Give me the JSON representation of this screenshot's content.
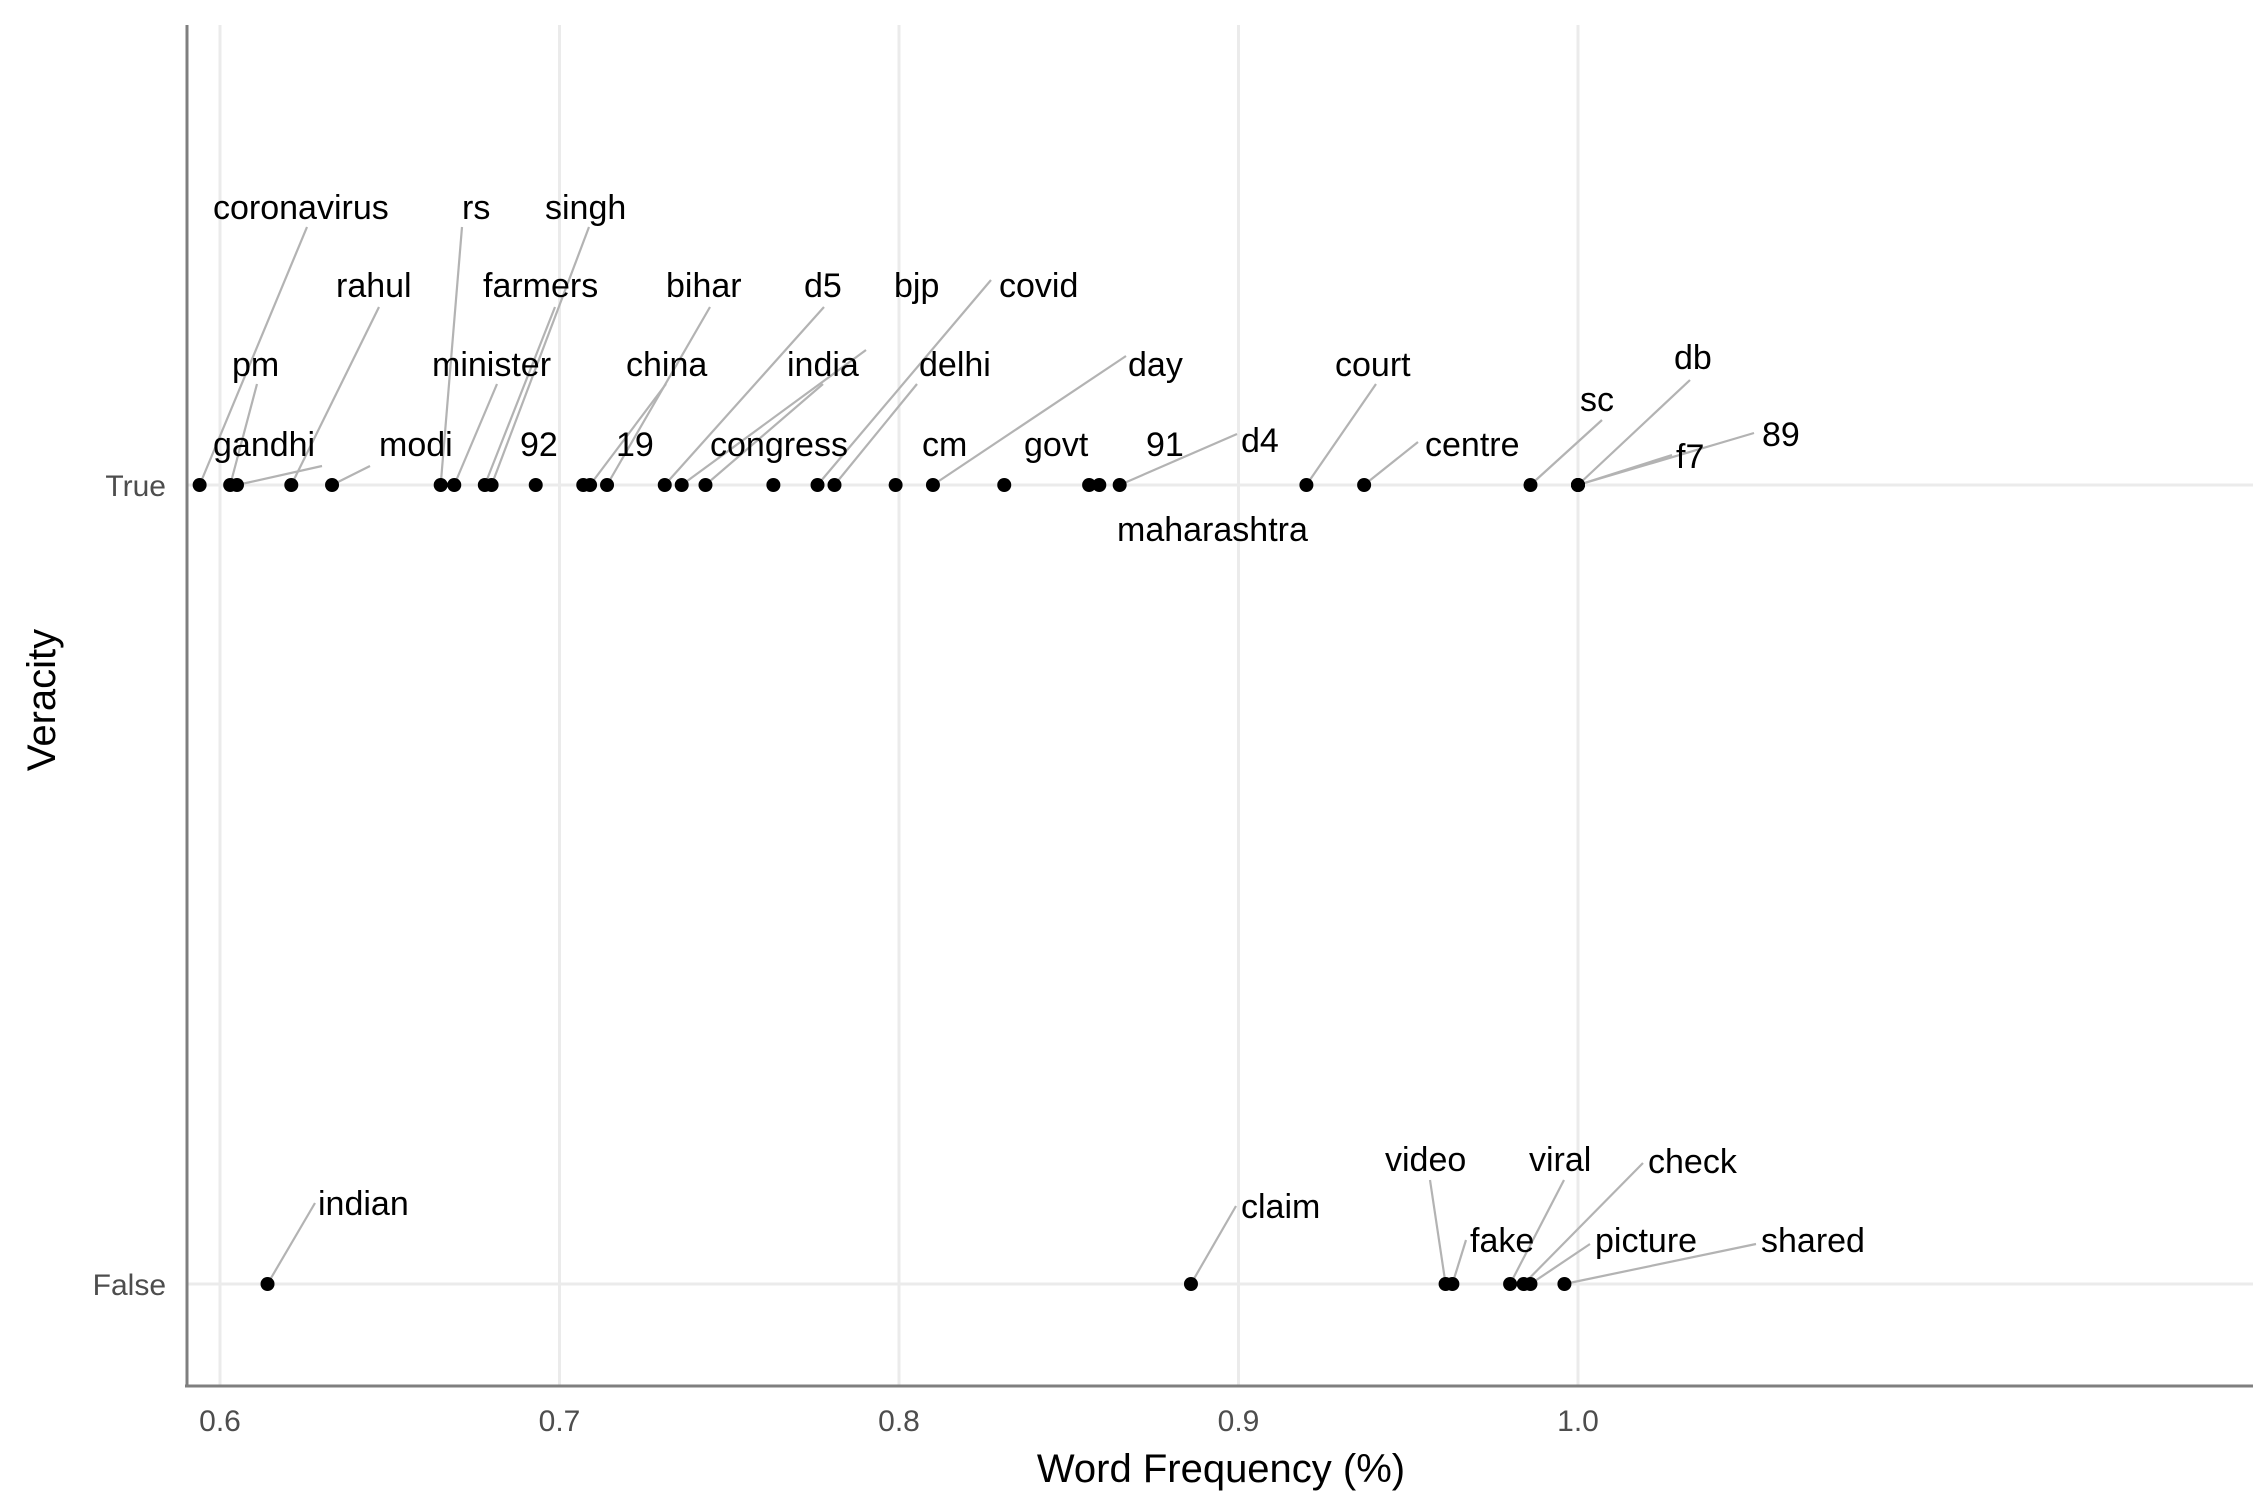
{
  "chart_data": {
    "type": "scatter",
    "title": "",
    "xlabel": "Word Frequency (%)",
    "ylabel": "Veracity",
    "xlim": [
      0.59,
      1.2
    ],
    "x_ticks": [
      "0.6",
      "0.7",
      "0.8",
      "0.9",
      "1.0"
    ],
    "x_tick_values": [
      0.6,
      0.7,
      0.8,
      0.9,
      1.0
    ],
    "categories": [
      "True",
      "False"
    ],
    "grid": "major gridlines on",
    "legend": "none",
    "series": [
      {
        "category": "True",
        "points": [
          {
            "label": "coronavirus",
            "x": 0.594
          },
          {
            "label": "pm",
            "x": 0.603
          },
          {
            "label": "gandhi",
            "x": 0.605
          },
          {
            "label": "rahul",
            "x": 0.621
          },
          {
            "label": "modi",
            "x": 0.633
          },
          {
            "label": "rs",
            "x": 0.665
          },
          {
            "label": "minister",
            "x": 0.669
          },
          {
            "label": "farmers",
            "x": 0.678
          },
          {
            "label": "singh",
            "x": 0.68
          },
          {
            "label": "92",
            "x": 0.693
          },
          {
            "label": "19",
            "x": 0.707
          },
          {
            "label": "china",
            "x": 0.709
          },
          {
            "label": "bihar",
            "x": 0.714
          },
          {
            "label": "d5",
            "x": 0.731
          },
          {
            "label": "bjp",
            "x": 0.736
          },
          {
            "label": "india",
            "x": 0.743
          },
          {
            "label": "congress",
            "x": 0.763
          },
          {
            "label": "covid",
            "x": 0.776
          },
          {
            "label": "delhi",
            "x": 0.781
          },
          {
            "label": "cm",
            "x": 0.799
          },
          {
            "label": "day",
            "x": 0.81
          },
          {
            "label": "govt",
            "x": 0.831
          },
          {
            "label": "maharashtra",
            "x": 0.856
          },
          {
            "label": "91",
            "x": 0.859
          },
          {
            "label": "d4",
            "x": 0.865
          },
          {
            "label": "court",
            "x": 0.92
          },
          {
            "label": "centre",
            "x": 0.937
          },
          {
            "label": "sc",
            "x": 0.986
          },
          {
            "label": "db",
            "x": 1.0
          },
          {
            "label": "f7",
            "x": 1.0
          },
          {
            "label": "89",
            "x": 1.0
          }
        ]
      },
      {
        "category": "False",
        "points": [
          {
            "label": "indian",
            "x": 0.614
          },
          {
            "label": "claim",
            "x": 0.886
          },
          {
            "label": "video",
            "x": 0.961
          },
          {
            "label": "fake",
            "x": 0.963
          },
          {
            "label": "viral",
            "x": 0.98
          },
          {
            "label": "check",
            "x": 0.984
          },
          {
            "label": "picture",
            "x": 0.986
          },
          {
            "label": "shared",
            "x": 0.996
          }
        ]
      }
    ]
  }
}
